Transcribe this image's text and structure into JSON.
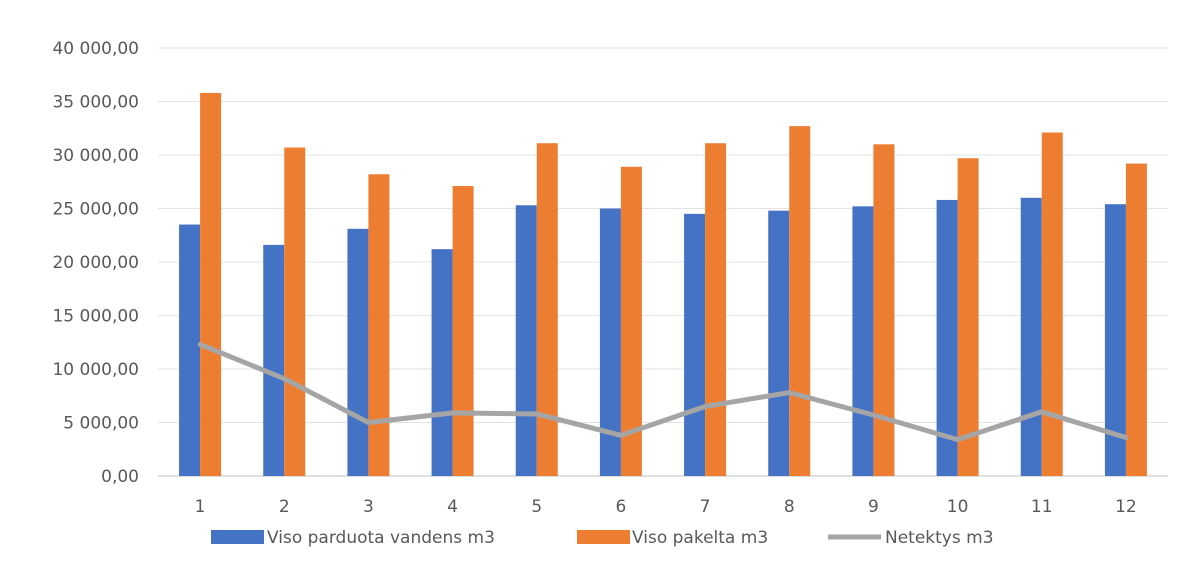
{
  "chart_data": {
    "type": "bar+line",
    "title": "",
    "xlabel": "",
    "ylabel": "",
    "categories": [
      "1",
      "2",
      "3",
      "4",
      "5",
      "6",
      "7",
      "8",
      "9",
      "10",
      "11",
      "12"
    ],
    "ylim": [
      0,
      40000
    ],
    "yticks": [
      0,
      5000,
      10000,
      15000,
      20000,
      25000,
      30000,
      35000,
      40000
    ],
    "ytick_labels": [
      "0,00",
      "5 000,00",
      "10 000,00",
      "15 000,00",
      "20 000,00",
      "25 000,00",
      "30 000,00",
      "35 000,00",
      "40 000,00"
    ],
    "grid": true,
    "legend_position": "bottom",
    "series": [
      {
        "name": "Viso parduota vandens  m3",
        "kind": "bar",
        "color": "#4472c4",
        "values": [
          23500,
          21600,
          23100,
          21200,
          25300,
          25000,
          24500,
          24800,
          25200,
          25800,
          26000,
          25400
        ]
      },
      {
        "name": "Viso pakelta m3",
        "kind": "bar",
        "color": "#ed7d31",
        "values": [
          35800,
          30700,
          28200,
          27100,
          31100,
          28900,
          31100,
          32700,
          31000,
          29700,
          32100,
          29200
        ]
      },
      {
        "name": "Netektys m3",
        "kind": "line",
        "color": "#a5a5a5",
        "values": [
          12300,
          9100,
          5000,
          5900,
          5800,
          3800,
          6500,
          7800,
          5700,
          3400,
          6000,
          3600
        ]
      }
    ]
  }
}
